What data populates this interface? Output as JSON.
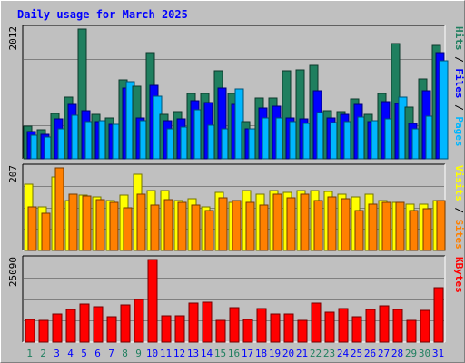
{
  "chart_data": {
    "type": "bar",
    "title": "Daily usage for March 2025",
    "x": [
      "1",
      "2",
      "3",
      "4",
      "5",
      "6",
      "7",
      "8",
      "9",
      "10",
      "11",
      "12",
      "13",
      "14",
      "15",
      "16",
      "17",
      "18",
      "19",
      "20",
      "21",
      "22",
      "23",
      "24",
      "25",
      "26",
      "27",
      "28",
      "29",
      "30",
      "31"
    ],
    "weekend_days": [
      1,
      2,
      8,
      9,
      15,
      16,
      22,
      23,
      29,
      30
    ],
    "colors": {
      "hits": "#1f7f5f",
      "files": "#0000ff",
      "pages": "#00b7ff",
      "visits": "#ffff00",
      "sites": "#ff8000",
      "kbytes": "#ff0000",
      "weekday_label": "#0000ff",
      "weekend_label": "#1f7f5f",
      "grid": "#808080",
      "panel_bg": "#c0c0c0"
    },
    "panels": [
      {
        "id": "hits-panel",
        "ymax_label": "2012",
        "ylim": [
          0,
          2012
        ],
        "side_labels": [
          "Pages",
          "Files",
          "Hits"
        ],
        "series": [
          {
            "name": "Hits",
            "color_key": "hits",
            "values": [
              510,
              452,
              708,
              962,
              2012,
              684,
              636,
              1228,
              1120,
              1646,
              696,
              728,
              1006,
              1006,
              1366,
              1006,
              582,
              943,
              943,
              1366,
              1384,
              1450,
              740,
              737,
              932,
              696,
              1006,
              1790,
              801,
              1232,
              1758
            ]
          },
          {
            "name": "Files",
            "color_key": "files",
            "values": [
              420,
              380,
              615,
              847,
              745,
              576,
              540,
              1094,
              640,
              1140,
              593,
              615,
              902,
              867,
              1095,
              844,
              468,
              782,
              816,
              640,
              616,
              1052,
              639,
              693,
              849,
              575,
              882,
              860,
              548,
              1050,
              1644
            ]
          },
          {
            "name": "Pages",
            "color_key": "pages",
            "values": [
              360,
              340,
              460,
              680,
              576,
              594,
              530,
              1194,
              587,
              966,
              466,
              487,
              760,
              521,
              466,
              1077,
              469,
              640,
              630,
              570,
              547,
              720,
              560,
              575,
              654,
              591,
              618,
              952,
              460,
              663,
              1520
            ]
          }
        ]
      },
      {
        "id": "visits-panel",
        "ymax_label": "207",
        "ylim": [
          0,
          207
        ],
        "side_labels": [
          "Sites",
          "Visits"
        ],
        "series": [
          {
            "name": "Visits",
            "color_key": "visits",
            "values": [
              165,
              110,
              185,
              125,
              139,
              134,
              125,
              139,
              192,
              149,
              149,
              125,
              130,
              110,
              145,
              120,
              151,
              142,
              151,
              145,
              150,
              149,
              148,
              142,
              135,
              141,
              125,
              120,
              115,
              116,
              125
            ]
          },
          {
            "name": "Sites",
            "color_key": "sites",
            "values": [
              110,
              94,
              207,
              140,
              136,
              127,
              121,
              107,
              141,
              113,
              128,
              120,
              114,
              100,
              133,
              125,
              121,
              113,
              140,
              133,
              142,
              126,
              135,
              129,
              100,
              115,
              120,
              121,
              101,
              104,
              126
            ]
          }
        ]
      },
      {
        "id": "kbytes-panel",
        "ymax_label": "25090",
        "ylim": [
          0,
          25090
        ],
        "side_labels": [
          "KBytes"
        ],
        "series": [
          {
            "name": "KBytes",
            "color_key": "kbytes",
            "values": [
              7000,
              6500,
              8500,
              9800,
              11500,
              10800,
              7800,
              11200,
              13000,
              25090,
              8000,
              8000,
              11800,
              12200,
              6500,
              10500,
              7000,
              10200,
              8500,
              8500,
              6500,
              11800,
              9200,
              10200,
              7700,
              10000,
              11000,
              10000,
              6500,
              9700,
              16500
            ]
          }
        ]
      }
    ]
  }
}
